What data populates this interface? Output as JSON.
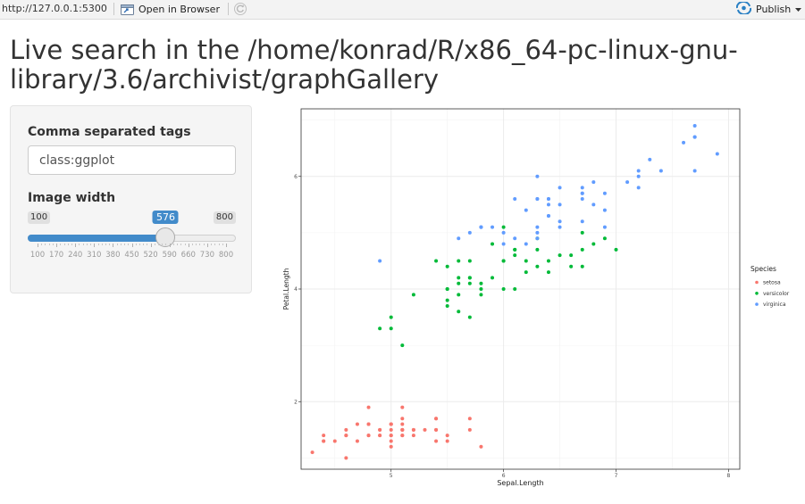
{
  "toolbar": {
    "url": "http://127.0.0.1:5300",
    "open_in_browser_label": "Open in Browser",
    "publish_label": "Publish"
  },
  "page": {
    "title": "Live search in the /home/konrad/R/x86_64-pc-linux-gnu-library/3.6/archivist/graphGallery"
  },
  "sidebar": {
    "tags_label": "Comma separated tags",
    "tags_value": "class:ggplot",
    "width_label": "Image width",
    "slider": {
      "min": 100,
      "max": 800,
      "value": 576,
      "min_label": "100",
      "max_label": "800",
      "value_label": "576",
      "tick_labels": [
        "100",
        "170",
        "240",
        "310",
        "380",
        "450",
        "520",
        "590",
        "660",
        "730",
        "800"
      ]
    }
  },
  "chart_data": {
    "type": "scatter",
    "xlabel": "Sepal.Length",
    "ylabel": "Petal.Length",
    "xlim": [
      4.2,
      8.1
    ],
    "ylim": [
      0.8,
      7.2
    ],
    "x_ticks": [
      5,
      6,
      7,
      8
    ],
    "y_ticks": [
      2,
      4,
      6
    ],
    "grid": true,
    "legend_title": "Species",
    "legend_position": "right",
    "series": [
      {
        "name": "setosa",
        "color": "#F8766D",
        "points": [
          [
            5.1,
            1.4
          ],
          [
            4.9,
            1.4
          ],
          [
            4.7,
            1.3
          ],
          [
            4.6,
            1.5
          ],
          [
            5.0,
            1.4
          ],
          [
            5.4,
            1.7
          ],
          [
            4.6,
            1.4
          ],
          [
            5.0,
            1.5
          ],
          [
            4.4,
            1.4
          ],
          [
            4.9,
            1.5
          ],
          [
            5.4,
            1.5
          ],
          [
            4.8,
            1.6
          ],
          [
            4.8,
            1.4
          ],
          [
            4.3,
            1.1
          ],
          [
            5.8,
            1.2
          ],
          [
            5.7,
            1.5
          ],
          [
            5.4,
            1.3
          ],
          [
            5.1,
            1.4
          ],
          [
            5.7,
            1.7
          ],
          [
            5.1,
            1.5
          ],
          [
            5.4,
            1.7
          ],
          [
            5.1,
            1.5
          ],
          [
            4.6,
            1.0
          ],
          [
            5.1,
            1.7
          ],
          [
            4.8,
            1.9
          ],
          [
            5.0,
            1.6
          ],
          [
            5.0,
            1.6
          ],
          [
            5.2,
            1.5
          ],
          [
            5.2,
            1.4
          ],
          [
            4.7,
            1.6
          ],
          [
            4.8,
            1.6
          ],
          [
            5.4,
            1.5
          ],
          [
            5.2,
            1.5
          ],
          [
            5.5,
            1.4
          ],
          [
            4.9,
            1.5
          ],
          [
            5.0,
            1.2
          ],
          [
            5.5,
            1.3
          ],
          [
            4.9,
            1.4
          ],
          [
            4.4,
            1.3
          ],
          [
            5.1,
            1.5
          ],
          [
            5.0,
            1.3
          ],
          [
            4.5,
            1.3
          ],
          [
            4.4,
            1.3
          ],
          [
            5.0,
            1.6
          ],
          [
            5.1,
            1.9
          ],
          [
            4.8,
            1.4
          ],
          [
            5.1,
            1.6
          ],
          [
            4.6,
            1.4
          ],
          [
            5.3,
            1.5
          ],
          [
            5.0,
            1.4
          ]
        ]
      },
      {
        "name": "versicolor",
        "color": "#00BA38",
        "points": [
          [
            7.0,
            4.7
          ],
          [
            6.4,
            4.5
          ],
          [
            6.9,
            4.9
          ],
          [
            5.5,
            4.0
          ],
          [
            6.5,
            4.6
          ],
          [
            5.7,
            4.5
          ],
          [
            6.3,
            4.7
          ],
          [
            4.9,
            3.3
          ],
          [
            6.6,
            4.6
          ],
          [
            5.2,
            3.9
          ],
          [
            5.0,
            3.5
          ],
          [
            5.9,
            4.2
          ],
          [
            6.0,
            4.0
          ],
          [
            6.1,
            4.7
          ],
          [
            5.6,
            3.6
          ],
          [
            6.7,
            4.4
          ],
          [
            5.6,
            4.5
          ],
          [
            5.8,
            4.1
          ],
          [
            6.2,
            4.5
          ],
          [
            5.6,
            3.9
          ],
          [
            5.9,
            4.8
          ],
          [
            6.1,
            4.0
          ],
          [
            6.3,
            4.9
          ],
          [
            6.1,
            4.7
          ],
          [
            6.4,
            4.3
          ],
          [
            6.6,
            4.4
          ],
          [
            6.8,
            4.8
          ],
          [
            6.7,
            5.0
          ],
          [
            6.0,
            4.5
          ],
          [
            5.7,
            3.5
          ],
          [
            5.5,
            3.8
          ],
          [
            5.5,
            3.7
          ],
          [
            5.8,
            3.9
          ],
          [
            6.0,
            5.1
          ],
          [
            5.4,
            4.5
          ],
          [
            6.0,
            4.5
          ],
          [
            6.7,
            4.7
          ],
          [
            6.3,
            4.4
          ],
          [
            5.6,
            4.1
          ],
          [
            5.5,
            4.0
          ],
          [
            5.5,
            4.4
          ],
          [
            6.1,
            4.6
          ],
          [
            5.8,
            4.0
          ],
          [
            5.0,
            3.3
          ],
          [
            5.6,
            4.2
          ],
          [
            5.7,
            4.2
          ],
          [
            5.7,
            4.2
          ],
          [
            6.2,
            4.3
          ],
          [
            5.1,
            3.0
          ],
          [
            5.7,
            4.1
          ]
        ]
      },
      {
        "name": "virginica",
        "color": "#619CFF",
        "points": [
          [
            6.3,
            6.0
          ],
          [
            5.8,
            5.1
          ],
          [
            7.1,
            5.9
          ],
          [
            6.3,
            5.6
          ],
          [
            6.5,
            5.8
          ],
          [
            7.6,
            6.6
          ],
          [
            4.9,
            4.5
          ],
          [
            7.3,
            6.3
          ],
          [
            6.7,
            5.8
          ],
          [
            7.2,
            6.1
          ],
          [
            6.5,
            5.1
          ],
          [
            6.4,
            5.3
          ],
          [
            6.8,
            5.5
          ],
          [
            5.7,
            5.0
          ],
          [
            5.8,
            5.1
          ],
          [
            6.4,
            5.3
          ],
          [
            6.5,
            5.5
          ],
          [
            7.7,
            6.7
          ],
          [
            7.7,
            6.9
          ],
          [
            6.0,
            5.0
          ],
          [
            6.9,
            5.7
          ],
          [
            5.6,
            4.9
          ],
          [
            7.7,
            6.7
          ],
          [
            6.3,
            4.9
          ],
          [
            6.7,
            5.7
          ],
          [
            7.2,
            6.0
          ],
          [
            6.2,
            4.8
          ],
          [
            6.1,
            4.9
          ],
          [
            6.4,
            5.6
          ],
          [
            7.2,
            5.8
          ],
          [
            7.4,
            6.1
          ],
          [
            7.9,
            6.4
          ],
          [
            6.4,
            5.6
          ],
          [
            6.3,
            5.1
          ],
          [
            6.1,
            5.6
          ],
          [
            7.7,
            6.1
          ],
          [
            6.3,
            5.6
          ],
          [
            6.4,
            5.5
          ],
          [
            6.0,
            4.8
          ],
          [
            6.9,
            5.4
          ],
          [
            6.7,
            5.6
          ],
          [
            6.9,
            5.1
          ],
          [
            5.8,
            5.1
          ],
          [
            6.8,
            5.9
          ],
          [
            6.7,
            5.7
          ],
          [
            6.7,
            5.2
          ],
          [
            6.3,
            5.0
          ],
          [
            6.5,
            5.2
          ],
          [
            6.2,
            5.4
          ],
          [
            5.9,
            5.1
          ]
        ]
      }
    ]
  },
  "icons": {
    "open_browser": "browser-window-icon",
    "refresh": "refresh-icon",
    "publish": "publish-icon",
    "publish_dropdown": "caret-down-icon"
  }
}
